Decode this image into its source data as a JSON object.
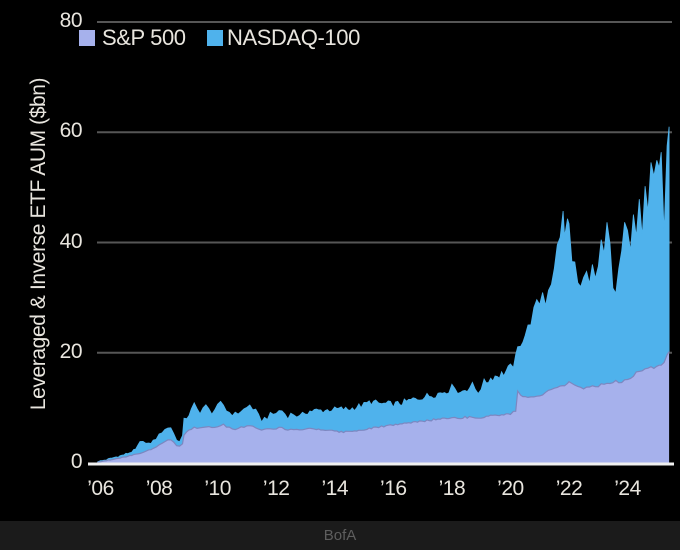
{
  "page": {
    "background": "#000000"
  },
  "footer": {
    "source": "BofA",
    "background": "#1b1b1b",
    "text_color": "#5e5e5e"
  },
  "chart_data": {
    "type": "area",
    "stacked": true,
    "title": "",
    "xlabel": "",
    "ylabel": "Leveraged & Inverse ETF AUM ($bn)",
    "legend_position": "top-left",
    "grid": "horizontal",
    "gridline_color": "#565656",
    "axis_line_color": "#f0f0f0",
    "axis_text_color": "#e8e5de",
    "ylim": [
      0,
      80
    ],
    "y_ticks": [
      0,
      20,
      40,
      60,
      80
    ],
    "xlim": [
      2005.88,
      2025.45
    ],
    "x_ticks": [
      {
        "label": "’06",
        "year": 2006
      },
      {
        "label": "’08",
        "year": 2008
      },
      {
        "label": "’10",
        "year": 2010
      },
      {
        "label": "’12",
        "year": 2012
      },
      {
        "label": "’14",
        "year": 2014
      },
      {
        "label": "’16",
        "year": 2016
      },
      {
        "label": "’18",
        "year": 2018
      },
      {
        "label": "’20",
        "year": 2020
      },
      {
        "label": "’22",
        "year": 2022
      },
      {
        "label": "’24",
        "year": 2024
      }
    ],
    "series": [
      {
        "name": "S&P 500",
        "color": "#a6b1ec",
        "edge_color": "#7c87c0"
      },
      {
        "name": "NASDAQ-100",
        "color": "#4fb2ec"
      }
    ],
    "columns": [
      "year",
      "S&P 500 AUM ($bn)",
      "NASDAQ-100 AUM ($bn)"
    ],
    "points": [
      [
        2005.9,
        0.15,
        0.05
      ],
      [
        2006.0,
        0.25,
        0.1
      ],
      [
        2006.2,
        0.45,
        0.15
      ],
      [
        2006.4,
        0.65,
        0.25
      ],
      [
        2006.6,
        0.85,
        0.35
      ],
      [
        2006.8,
        1.05,
        0.45
      ],
      [
        2007.0,
        1.3,
        0.6
      ],
      [
        2007.2,
        1.55,
        0.85
      ],
      [
        2007.35,
        1.75,
        1.95
      ],
      [
        2007.45,
        1.9,
        2.3
      ],
      [
        2007.55,
        2.1,
        1.4
      ],
      [
        2007.65,
        2.3,
        1.1
      ],
      [
        2007.8,
        2.6,
        1.4
      ],
      [
        2007.9,
        2.9,
        1.6
      ],
      [
        2008.0,
        3.2,
        1.8
      ],
      [
        2008.1,
        3.6,
        2.1
      ],
      [
        2008.2,
        3.9,
        2.3
      ],
      [
        2008.3,
        4.1,
        2.2
      ],
      [
        2008.4,
        4.2,
        2.3
      ],
      [
        2008.5,
        3.8,
        1.6
      ],
      [
        2008.6,
        3.1,
        1.0
      ],
      [
        2008.7,
        3.0,
        1.1
      ],
      [
        2008.8,
        3.4,
        1.5
      ],
      [
        2008.85,
        5.2,
        2.5
      ],
      [
        2008.95,
        5.7,
        2.6
      ],
      [
        2009.1,
        6.2,
        3.3
      ],
      [
        2009.2,
        6.5,
        4.0
      ],
      [
        2009.3,
        6.4,
        3.3
      ],
      [
        2009.4,
        6.3,
        3.1
      ],
      [
        2009.5,
        6.5,
        3.5
      ],
      [
        2009.6,
        6.6,
        3.6
      ],
      [
        2009.7,
        6.5,
        3.1
      ],
      [
        2009.8,
        6.4,
        2.9
      ],
      [
        2009.9,
        6.5,
        3.2
      ],
      [
        2010.0,
        6.6,
        3.5
      ],
      [
        2010.1,
        6.8,
        3.9
      ],
      [
        2010.2,
        6.9,
        3.6
      ],
      [
        2010.3,
        6.6,
        3.0
      ],
      [
        2010.4,
        6.4,
        2.8
      ],
      [
        2010.5,
        6.3,
        2.7
      ],
      [
        2010.6,
        6.2,
        2.6
      ],
      [
        2010.7,
        6.3,
        2.8
      ],
      [
        2010.8,
        6.5,
        3.0
      ],
      [
        2010.9,
        6.5,
        3.2
      ],
      [
        2011.0,
        6.6,
        3.4
      ],
      [
        2011.1,
        6.7,
        3.8
      ],
      [
        2011.2,
        6.6,
        3.3
      ],
      [
        2011.3,
        6.4,
        2.9
      ],
      [
        2011.4,
        6.1,
        2.3
      ],
      [
        2011.5,
        5.9,
        1.9
      ],
      [
        2011.6,
        6.0,
        2.1
      ],
      [
        2011.7,
        6.1,
        2.2
      ],
      [
        2011.8,
        6.2,
        2.5
      ],
      [
        2011.9,
        6.2,
        2.6
      ],
      [
        2012.0,
        6.3,
        2.8
      ],
      [
        2012.1,
        6.4,
        3.0
      ],
      [
        2012.2,
        6.4,
        3.1
      ],
      [
        2012.3,
        6.2,
        2.7
      ],
      [
        2012.4,
        6.1,
        2.4
      ],
      [
        2012.5,
        6.2,
        2.6
      ],
      [
        2012.6,
        6.2,
        2.7
      ],
      [
        2012.7,
        6.1,
        2.5
      ],
      [
        2012.8,
        6.0,
        2.3
      ],
      [
        2012.9,
        6.1,
        2.6
      ],
      [
        2013.0,
        6.2,
        2.9
      ],
      [
        2013.15,
        6.3,
        3.1
      ],
      [
        2013.3,
        6.2,
        3.3
      ],
      [
        2013.45,
        6.1,
        3.4
      ],
      [
        2013.6,
        6.0,
        3.5
      ],
      [
        2013.75,
        6.0,
        3.6
      ],
      [
        2013.9,
        5.9,
        3.8
      ],
      [
        2014.0,
        5.8,
        3.9
      ],
      [
        2014.15,
        5.7,
        4.1
      ],
      [
        2014.3,
        5.6,
        4.2
      ],
      [
        2014.45,
        5.7,
        4.0
      ],
      [
        2014.6,
        5.8,
        4.1
      ],
      [
        2014.75,
        5.9,
        4.3
      ],
      [
        2014.9,
        6.0,
        4.4
      ],
      [
        2015.0,
        6.1,
        4.4
      ],
      [
        2015.1,
        6.2,
        4.6
      ],
      [
        2015.25,
        6.3,
        4.8
      ],
      [
        2015.4,
        6.4,
        4.5
      ],
      [
        2015.5,
        6.5,
        4.3
      ],
      [
        2015.6,
        6.6,
        4.1
      ],
      [
        2015.75,
        6.7,
        4.0
      ],
      [
        2015.9,
        6.8,
        3.9
      ],
      [
        2016.0,
        6.9,
        3.8
      ],
      [
        2016.15,
        7.0,
        3.7
      ],
      [
        2016.3,
        7.1,
        3.8
      ],
      [
        2016.45,
        7.2,
        3.9
      ],
      [
        2016.6,
        7.3,
        4.1
      ],
      [
        2016.75,
        7.4,
        4.2
      ],
      [
        2016.9,
        7.5,
        4.3
      ],
      [
        2017.0,
        7.6,
        4.4
      ],
      [
        2017.15,
        7.7,
        4.4
      ],
      [
        2017.3,
        7.8,
        4.5
      ],
      [
        2017.45,
        7.9,
        4.6
      ],
      [
        2017.6,
        8.0,
        4.7
      ],
      [
        2017.75,
        8.1,
        4.9
      ],
      [
        2017.9,
        8.2,
        5.1
      ],
      [
        2018.0,
        8.3,
        5.3
      ],
      [
        2018.1,
        8.4,
        5.8
      ],
      [
        2018.2,
        8.2,
        4.8
      ],
      [
        2018.3,
        8.2,
        4.6
      ],
      [
        2018.45,
        8.3,
        5.1
      ],
      [
        2018.6,
        8.3,
        5.4
      ],
      [
        2018.7,
        8.4,
        5.6
      ],
      [
        2018.8,
        8.3,
        5.1
      ],
      [
        2018.9,
        8.2,
        4.8
      ],
      [
        2019.0,
        8.3,
        5.5
      ],
      [
        2019.1,
        8.4,
        6.1
      ],
      [
        2019.25,
        8.5,
        6.6
      ],
      [
        2019.4,
        8.6,
        7.0
      ],
      [
        2019.55,
        8.7,
        7.2
      ],
      [
        2019.7,
        8.7,
        7.4
      ],
      [
        2019.85,
        8.8,
        7.8
      ],
      [
        2020.0,
        9.0,
        8.2
      ],
      [
        2020.1,
        9.2,
        8.8
      ],
      [
        2020.18,
        9.4,
        9.4
      ],
      [
        2020.25,
        13.0,
        7.6
      ],
      [
        2020.35,
        12.2,
        9.8
      ],
      [
        2020.5,
        11.8,
        11.5
      ],
      [
        2020.6,
        11.8,
        12.5
      ],
      [
        2020.7,
        11.9,
        14.2
      ],
      [
        2020.8,
        12.0,
        15.3
      ],
      [
        2020.9,
        12.1,
        16.3
      ],
      [
        2021.0,
        12.3,
        17.0
      ],
      [
        2021.1,
        12.5,
        18.5
      ],
      [
        2021.2,
        12.8,
        16.6
      ],
      [
        2021.3,
        13.0,
        19.0
      ],
      [
        2021.4,
        13.2,
        20.0
      ],
      [
        2021.5,
        13.3,
        21.2
      ],
      [
        2021.6,
        13.5,
        25.5
      ],
      [
        2021.7,
        13.8,
        28.2
      ],
      [
        2021.8,
        14.0,
        30.5
      ],
      [
        2021.85,
        14.1,
        27.0
      ],
      [
        2021.95,
        14.3,
        29.5
      ],
      [
        2022.0,
        14.5,
        28.0
      ],
      [
        2022.1,
        14.3,
        24.0
      ],
      [
        2022.2,
        14.0,
        21.5
      ],
      [
        2022.3,
        13.8,
        18.5
      ],
      [
        2022.4,
        13.5,
        17.2
      ],
      [
        2022.5,
        13.6,
        19.0
      ],
      [
        2022.6,
        13.8,
        20.0
      ],
      [
        2022.7,
        13.9,
        18.0
      ],
      [
        2022.8,
        14.0,
        21.0
      ],
      [
        2022.9,
        13.8,
        19.5
      ],
      [
        2023.0,
        14.0,
        22.0
      ],
      [
        2023.1,
        14.2,
        25.8
      ],
      [
        2023.2,
        14.3,
        23.7
      ],
      [
        2023.3,
        14.4,
        27.6
      ],
      [
        2023.4,
        14.6,
        24.4
      ],
      [
        2023.5,
        14.8,
        18.2
      ],
      [
        2023.6,
        14.9,
        16.6
      ],
      [
        2023.7,
        14.7,
        19.3
      ],
      [
        2023.8,
        14.6,
        23.4
      ],
      [
        2023.9,
        15.0,
        27.0
      ],
      [
        2024.0,
        15.3,
        28.7
      ],
      [
        2024.1,
        15.6,
        24.4
      ],
      [
        2024.2,
        16.0,
        31.0
      ],
      [
        2024.3,
        16.3,
        26.7
      ],
      [
        2024.4,
        16.8,
        32.2
      ],
      [
        2024.5,
        17.0,
        24.0
      ],
      [
        2024.6,
        17.3,
        32.7
      ],
      [
        2024.7,
        17.0,
        29.0
      ],
      [
        2024.8,
        17.5,
        37.5
      ],
      [
        2024.9,
        17.2,
        32.8
      ],
      [
        2025.0,
        17.8,
        39.2
      ],
      [
        2025.08,
        17.5,
        34.5
      ],
      [
        2025.15,
        18.0,
        37.0
      ],
      [
        2025.25,
        18.5,
        21.5
      ],
      [
        2025.35,
        19.3,
        36.7
      ],
      [
        2025.42,
        20.2,
        40.8
      ]
    ]
  }
}
